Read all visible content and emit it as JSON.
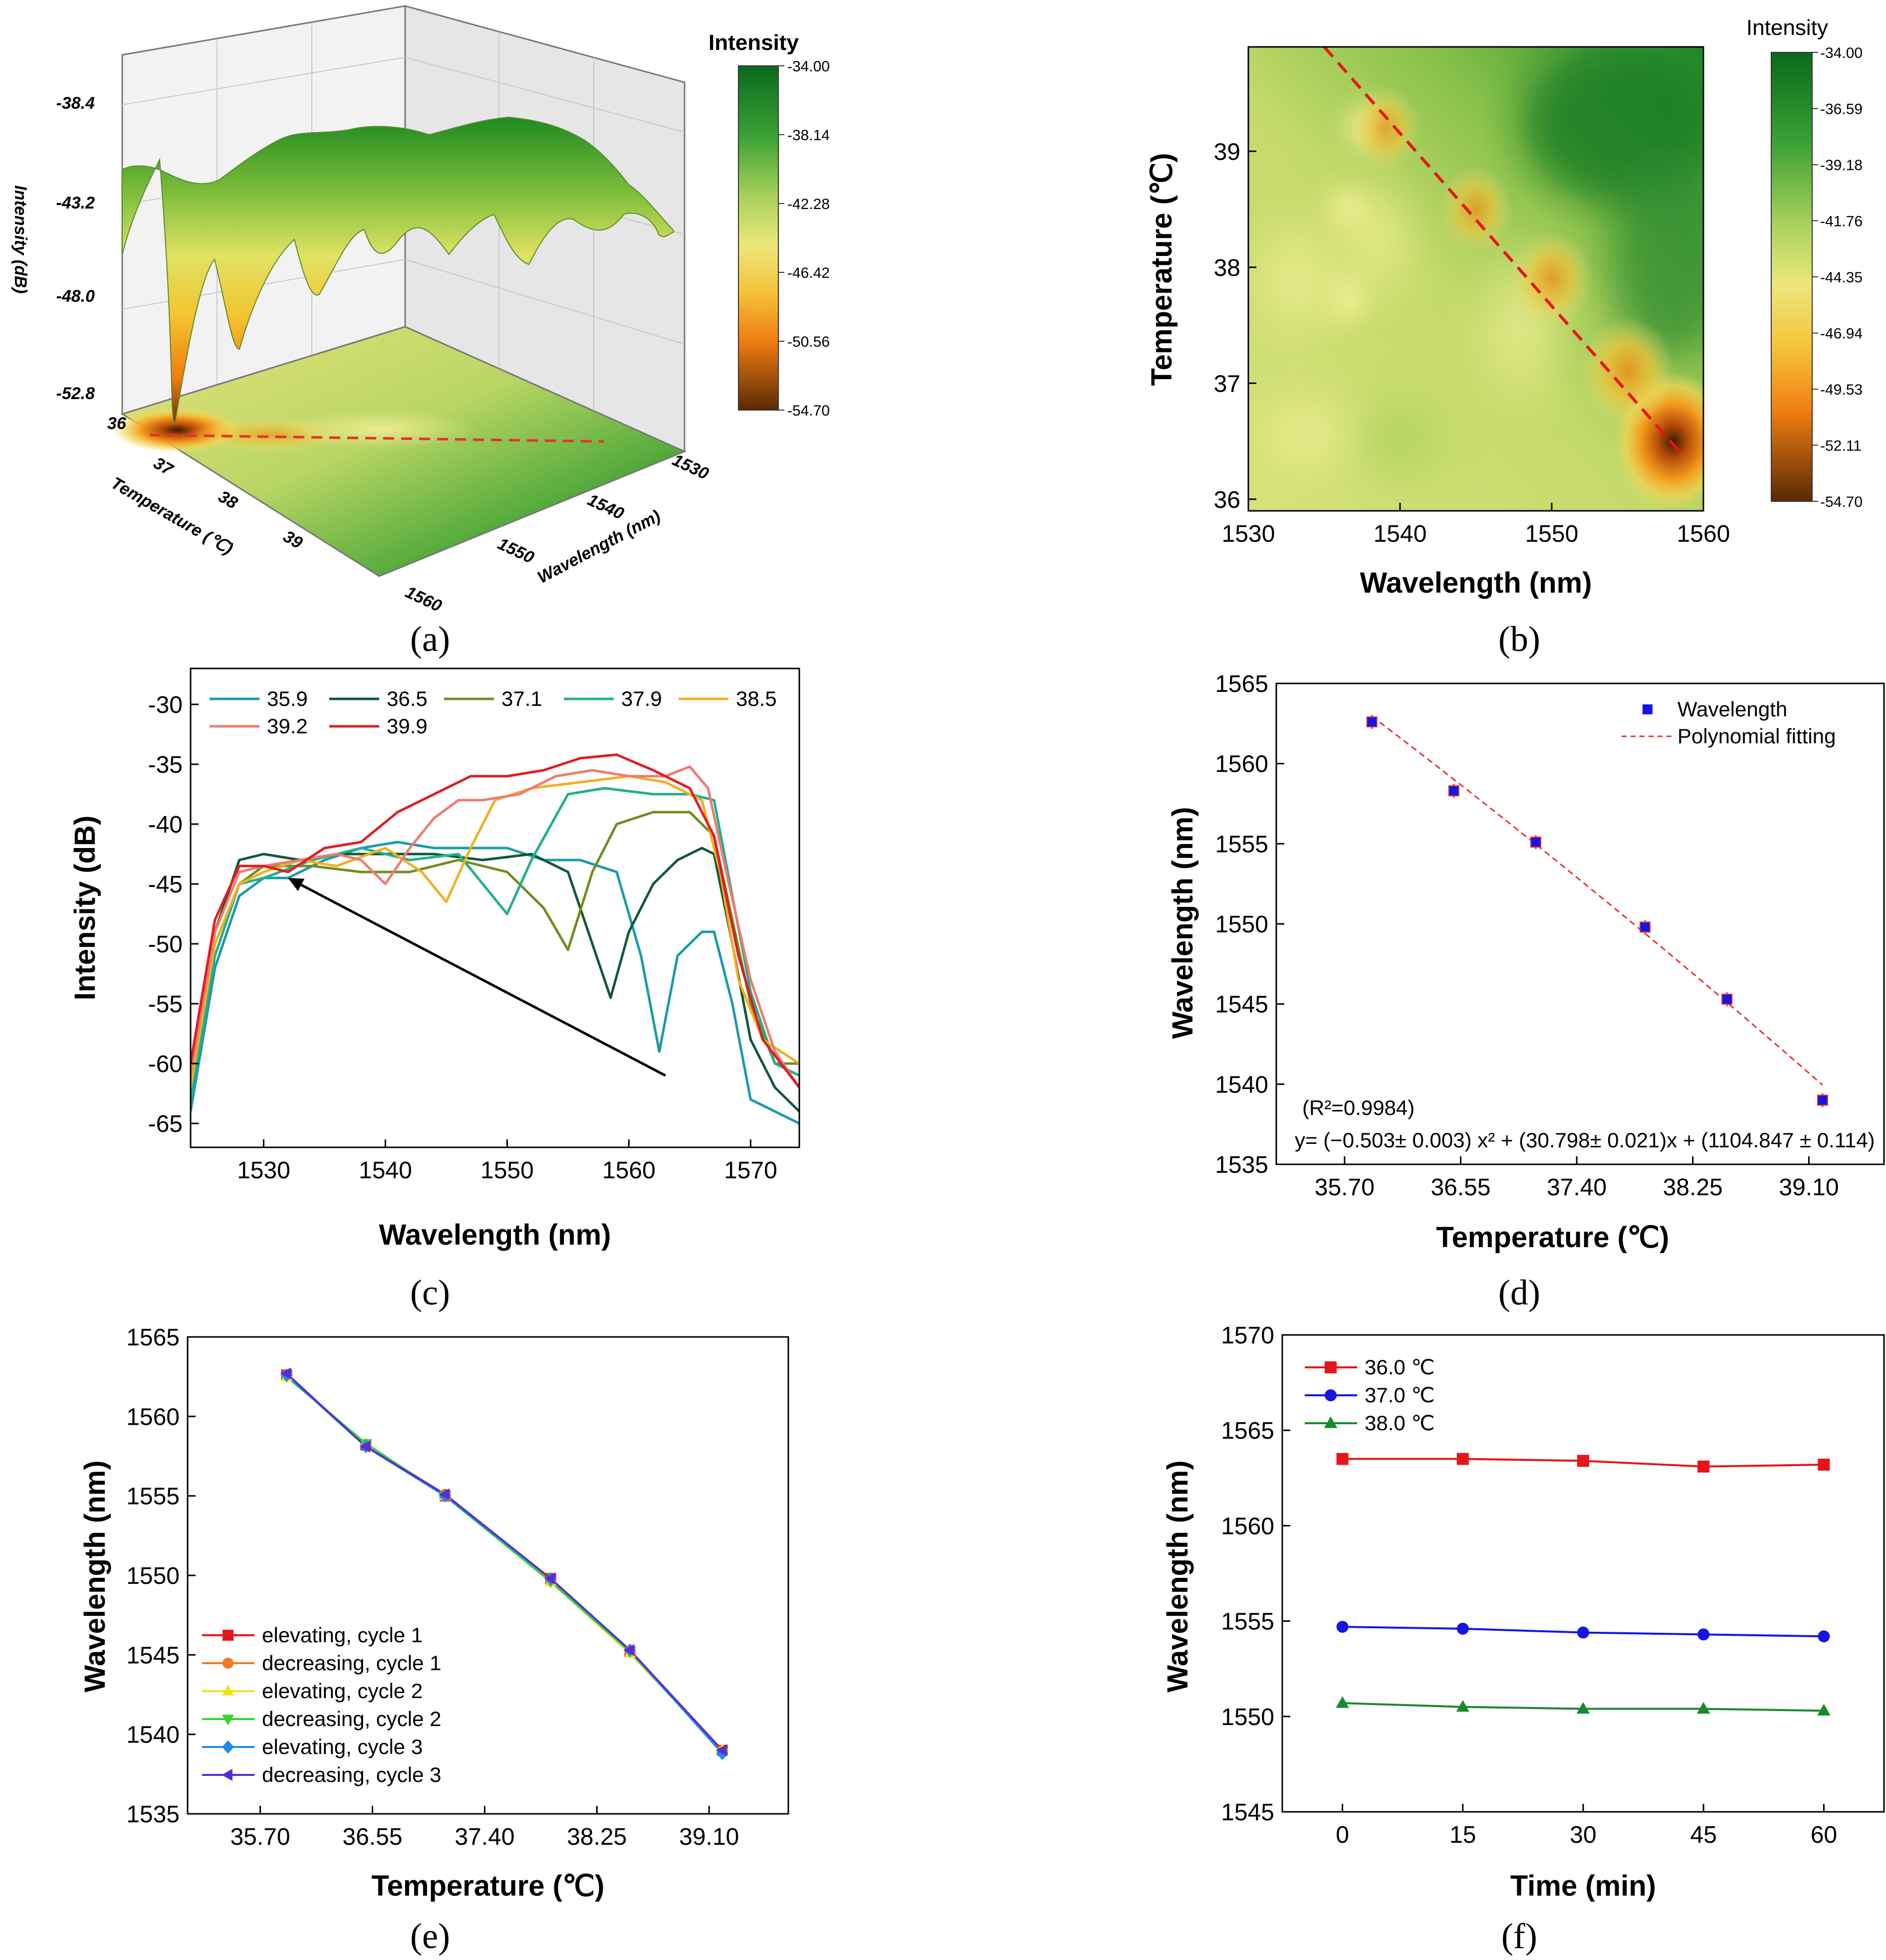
{
  "captions": [
    "(a)",
    "(b)",
    "(c)",
    "(d)",
    "(e)",
    "(f)"
  ],
  "colors": {
    "accent_red": "#e8141a",
    "dashed_red": "#e83030",
    "blue_marker": "#1515e8"
  },
  "chart_data": [
    {
      "id": "a",
      "type": "surface3d",
      "title": "",
      "colorbar_title": "Intensity",
      "colorbar_ticks": [
        "-34.00",
        "-38.14",
        "-42.28",
        "-46.42",
        "-50.56",
        "-54.70"
      ],
      "z_label": "Intensity (dB)",
      "z_ticks": [
        "-38.4",
        "-43.2",
        "-48.0",
        "-52.8"
      ],
      "x_label": "Wavelength (nm)",
      "x_ticks": [
        "1530",
        "1540",
        "1550",
        "1560"
      ],
      "y_label": "Temperature (℃)",
      "y_ticks": [
        "36",
        "37",
        "38",
        "39"
      ]
    },
    {
      "id": "b",
      "type": "heatmap",
      "colorbar_title": "Intensity",
      "colorbar_ticks": [
        "-34.00",
        "-36.59",
        "-39.18",
        "-41.76",
        "-44.35",
        "-46.94",
        "-49.53",
        "-52.11",
        "-54.70"
      ],
      "xlabel": "Wavelength (nm)",
      "ylabel": "Temperature (℃)",
      "x_ticks": [
        "1530",
        "1540",
        "1550",
        "1560"
      ],
      "y_ticks": [
        "36",
        "37",
        "38",
        "39"
      ],
      "xlim": [
        1530,
        1560
      ],
      "ylim": [
        35.9,
        39.9
      ],
      "trend_line": {
        "x": [
          1535,
          1558.5
        ],
        "y": [
          39.9,
          36.4
        ]
      },
      "hot_spots": [
        {
          "x": 1558,
          "y": 36.5,
          "value": -54.7
        },
        {
          "x": 1555,
          "y": 37.1,
          "value": -49.5
        },
        {
          "x": 1550,
          "y": 37.9,
          "value": -46.9
        },
        {
          "x": 1545,
          "y": 38.5,
          "value": -45.0
        },
        {
          "x": 1539,
          "y": 39.2,
          "value": -44.3
        }
      ]
    },
    {
      "id": "c",
      "type": "line",
      "xlabel": "Wavelength (nm)",
      "ylabel": "Intensity (dB)",
      "xlim": [
        1524,
        1574
      ],
      "ylim": [
        -67,
        -27
      ],
      "x_ticks": [
        "1530",
        "1540",
        "1550",
        "1560",
        "1570"
      ],
      "y_ticks": [
        "-30",
        "-35",
        "-40",
        "-45",
        "-50",
        "-55",
        "-60",
        "-65"
      ],
      "arrow": {
        "from": [
          1563,
          -61
        ],
        "to": [
          1532,
          -44.5
        ]
      },
      "series": [
        {
          "name": "35.9",
          "color": "#1a9aa8",
          "x": [
            1524,
            1526,
            1528,
            1530,
            1532,
            1535,
            1538,
            1541,
            1544,
            1547,
            1550,
            1553,
            1556,
            1559,
            1561,
            1562.5,
            1564,
            1566,
            1567,
            1568.5,
            1570,
            1572,
            1574
          ],
          "y": [
            -64,
            -52,
            -46,
            -44.5,
            -44.5,
            -43,
            -42,
            -41.5,
            -42,
            -42,
            -42,
            -43,
            -43,
            -44,
            -51,
            -59,
            -51,
            -49,
            -49,
            -55,
            -63,
            -64,
            -65
          ]
        },
        {
          "name": "36.5",
          "color": "#0e5a34",
          "x": [
            1524,
            1526,
            1528,
            1530,
            1533,
            1536,
            1540,
            1544,
            1548,
            1552,
            1555,
            1557,
            1558.5,
            1560,
            1562,
            1564,
            1566,
            1567,
            1568.5,
            1570,
            1572,
            1574
          ],
          "y": [
            -61,
            -49,
            -43,
            -42.5,
            -43,
            -42.5,
            -42.5,
            -42.5,
            -43,
            -42.5,
            -44,
            -50,
            -54.5,
            -49,
            -45,
            -43,
            -42,
            -42.5,
            -50,
            -58,
            -62,
            -64
          ]
        },
        {
          "name": "37.1",
          "color": "#6f8e1c",
          "x": [
            1524,
            1526,
            1528,
            1530,
            1534,
            1538,
            1542,
            1546,
            1550,
            1553,
            1555,
            1557,
            1559,
            1562,
            1565,
            1567,
            1568.5,
            1570,
            1572,
            1574
          ],
          "y": [
            -62,
            -50,
            -45,
            -43.5,
            -43.5,
            -44,
            -44,
            -43,
            -44,
            -47,
            -50.5,
            -44,
            -40,
            -39,
            -39,
            -41,
            -48,
            -55,
            -60,
            -60
          ]
        },
        {
          "name": "37.9",
          "color": "#1fb08e",
          "x": [
            1524,
            1526,
            1528,
            1530,
            1534,
            1538,
            1542,
            1546,
            1548,
            1550,
            1552,
            1555,
            1558,
            1562,
            1565,
            1567,
            1568.5,
            1570,
            1572,
            1574
          ],
          "y": [
            -63,
            -51,
            -45,
            -44.5,
            -43,
            -42,
            -43,
            -42.5,
            -45,
            -47.5,
            -43,
            -37.5,
            -37,
            -37.5,
            -37.5,
            -38,
            -46,
            -54,
            -60,
            -61
          ]
        },
        {
          "name": "38.5",
          "color": "#f0b020",
          "x": [
            1524,
            1526,
            1528,
            1530,
            1533,
            1536,
            1540,
            1543,
            1545,
            1547,
            1549,
            1552,
            1556,
            1560,
            1563,
            1566,
            1567.5,
            1569,
            1571,
            1574
          ],
          "y": [
            -62,
            -50,
            -45,
            -44,
            -43,
            -43.5,
            -42,
            -44,
            -46.5,
            -42,
            -38,
            -37,
            -36.5,
            -36,
            -36.5,
            -38,
            -44,
            -53,
            -58,
            -60
          ]
        },
        {
          "name": "39.2",
          "color": "#f07a70",
          "x": [
            1524,
            1526,
            1528,
            1530,
            1533,
            1536,
            1538,
            1540,
            1542,
            1544,
            1546,
            1548,
            1551,
            1554,
            1557,
            1560,
            1563,
            1565,
            1566.5,
            1568,
            1570,
            1572,
            1574
          ],
          "y": [
            -61,
            -49,
            -44,
            -43.5,
            -43,
            -42.5,
            -43,
            -45,
            -42,
            -39.5,
            -38,
            -38,
            -37.5,
            -36,
            -35.5,
            -36,
            -36,
            -35.2,
            -37,
            -44,
            -53,
            -59,
            -62
          ]
        },
        {
          "name": "39.9",
          "color": "#e01c24",
          "x": [
            1524,
            1526,
            1528,
            1530,
            1532,
            1535,
            1538,
            1541,
            1544,
            1547,
            1550,
            1553,
            1556,
            1559,
            1562,
            1565,
            1567,
            1569,
            1571,
            1574
          ],
          "y": [
            -60,
            -48,
            -43.5,
            -43.5,
            -44,
            -42,
            -41.5,
            -39,
            -37.5,
            -36,
            -36,
            -35.5,
            -34.5,
            -34.2,
            -35.5,
            -37,
            -41,
            -51,
            -58,
            -62
          ]
        }
      ]
    },
    {
      "id": "d",
      "type": "scatter",
      "xlabel": "Temperature (℃)",
      "ylabel": "Wavelength (nm)",
      "xlim": [
        35.2,
        39.65
      ],
      "ylim": [
        1535,
        1565
      ],
      "x_ticks": [
        "35.70",
        "36.55",
        "37.40",
        "38.25",
        "39.10"
      ],
      "y_ticks": [
        "1535",
        "1540",
        "1545",
        "1550",
        "1555",
        "1560",
        "1565"
      ],
      "legend": [
        "Wavelength",
        "Polynomial  fitting"
      ],
      "r2_text": "(R²=0.9984)",
      "equation_text": "y= (−0.503± 0.003) x² + (30.798± 0.021)x + (1104.847 ± 0.114)",
      "series": [
        {
          "name": "Wavelength",
          "x": [
            35.9,
            36.5,
            37.1,
            37.9,
            38.5,
            39.2
          ],
          "y": [
            1562.6,
            1558.3,
            1555.1,
            1549.8,
            1545.3,
            1539.0
          ]
        }
      ]
    },
    {
      "id": "e",
      "type": "line",
      "xlabel": "Temperature (℃)",
      "ylabel": "Wavelength (nm)",
      "xlim": [
        35.15,
        39.7
      ],
      "ylim": [
        1535,
        1565
      ],
      "x_ticks": [
        "35.70",
        "36.55",
        "37.40",
        "38.25",
        "39.10"
      ],
      "y_ticks": [
        "1535",
        "1540",
        "1545",
        "1550",
        "1555",
        "1560",
        "1565"
      ],
      "x": [
        35.9,
        36.5,
        37.1,
        37.9,
        38.5,
        39.2
      ],
      "series": [
        {
          "name": "elevating,  cycle 1",
          "color": "#e8141a",
          "marker": "square",
          "values": [
            1562.6,
            1558.2,
            1555.0,
            1549.8,
            1545.2,
            1539.0
          ]
        },
        {
          "name": "decreasing, cycle 1",
          "color": "#f07a20",
          "marker": "circle",
          "values": [
            1562.6,
            1558.2,
            1555.1,
            1549.7,
            1545.2,
            1539.0
          ]
        },
        {
          "name": "elevating,  cycle 2",
          "color": "#f2e21c",
          "marker": "triangle-up",
          "values": [
            1562.5,
            1558.3,
            1555.0,
            1549.6,
            1545.1,
            1539.0
          ]
        },
        {
          "name": "decreasing, cycle 2",
          "color": "#2ed82e",
          "marker": "triangle-down",
          "values": [
            1562.5,
            1558.3,
            1555.0,
            1549.6,
            1545.2,
            1538.9
          ]
        },
        {
          "name": "elevating,  cycle 3",
          "color": "#1a8ce8",
          "marker": "diamond",
          "values": [
            1562.6,
            1558.1,
            1555.0,
            1549.8,
            1545.3,
            1538.8
          ]
        },
        {
          "name": "decreasing, cycle 3",
          "color": "#5a2cd8",
          "marker": "triangle-left",
          "values": [
            1562.7,
            1558.1,
            1555.1,
            1549.8,
            1545.3,
            1539.0
          ]
        }
      ]
    },
    {
      "id": "f",
      "type": "line",
      "xlabel": "Time (min)",
      "ylabel": "Wavelength (nm)",
      "xlim": [
        -7.5,
        67.5
      ],
      "ylim": [
        1545,
        1570
      ],
      "x_ticks": [
        "0",
        "15",
        "30",
        "45",
        "60"
      ],
      "y_ticks": [
        "1545",
        "1550",
        "1555",
        "1560",
        "1565",
        "1570"
      ],
      "x": [
        0,
        15,
        30,
        45,
        60
      ],
      "series": [
        {
          "name": "36.0 ℃",
          "color": "#e8141a",
          "marker": "square",
          "values": [
            1563.5,
            1563.5,
            1563.4,
            1563.1,
            1563.2
          ]
        },
        {
          "name": "37.0 ℃",
          "color": "#1515e8",
          "marker": "circle",
          "values": [
            1554.7,
            1554.6,
            1554.4,
            1554.3,
            1554.2
          ]
        },
        {
          "name": "38.0 ℃",
          "color": "#178a2c",
          "marker": "triangle-up",
          "values": [
            1550.7,
            1550.5,
            1550.4,
            1550.4,
            1550.3
          ]
        }
      ]
    }
  ]
}
